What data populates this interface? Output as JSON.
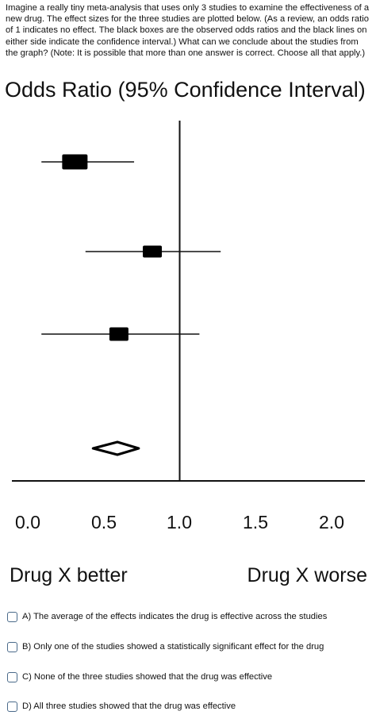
{
  "question": "Imagine a really tiny meta-analysis that uses only 3 studies to examine the effectiveness of a new drug.  The effect sizes for the three studies are plotted below. (As a review, an odds ratio of 1 indicates no effect. The black boxes are the observed odds ratios and the black lines on either side indicate the confidence interval.) What can we conclude about the studies from the graph? (Note: It is possible that more than one answer is correct. Choose all that apply.)",
  "chart_data": {
    "type": "forest",
    "title": "Odds Ratio (95% Confidence Interval)",
    "x_ticks": [
      "0.0",
      "0.5",
      "1.0",
      "1.5",
      "2.0"
    ],
    "xlim": [
      0.0,
      2.0
    ],
    "reference_line": 1.0,
    "left_label": "Drug X better",
    "right_label": "Drug X worse",
    "studies": [
      {
        "estimate": 0.31,
        "ci_low": 0.09,
        "ci_high": 0.7
      },
      {
        "estimate": 0.82,
        "ci_low": 0.38,
        "ci_high": 1.27
      },
      {
        "estimate": 0.6,
        "ci_low": 0.09,
        "ci_high": 1.13
      }
    ],
    "pooled": {
      "estimate": 0.59,
      "ci_low": 0.43,
      "ci_high": 0.73
    }
  },
  "options": [
    "A) The average of the effects indicates the drug is effective across the studies",
    "B) Only one of the studies showed a statistically significant effect for the drug",
    "C) None of the three studies showed that the drug was effective",
    "D) All three studies showed that the drug was effective"
  ]
}
